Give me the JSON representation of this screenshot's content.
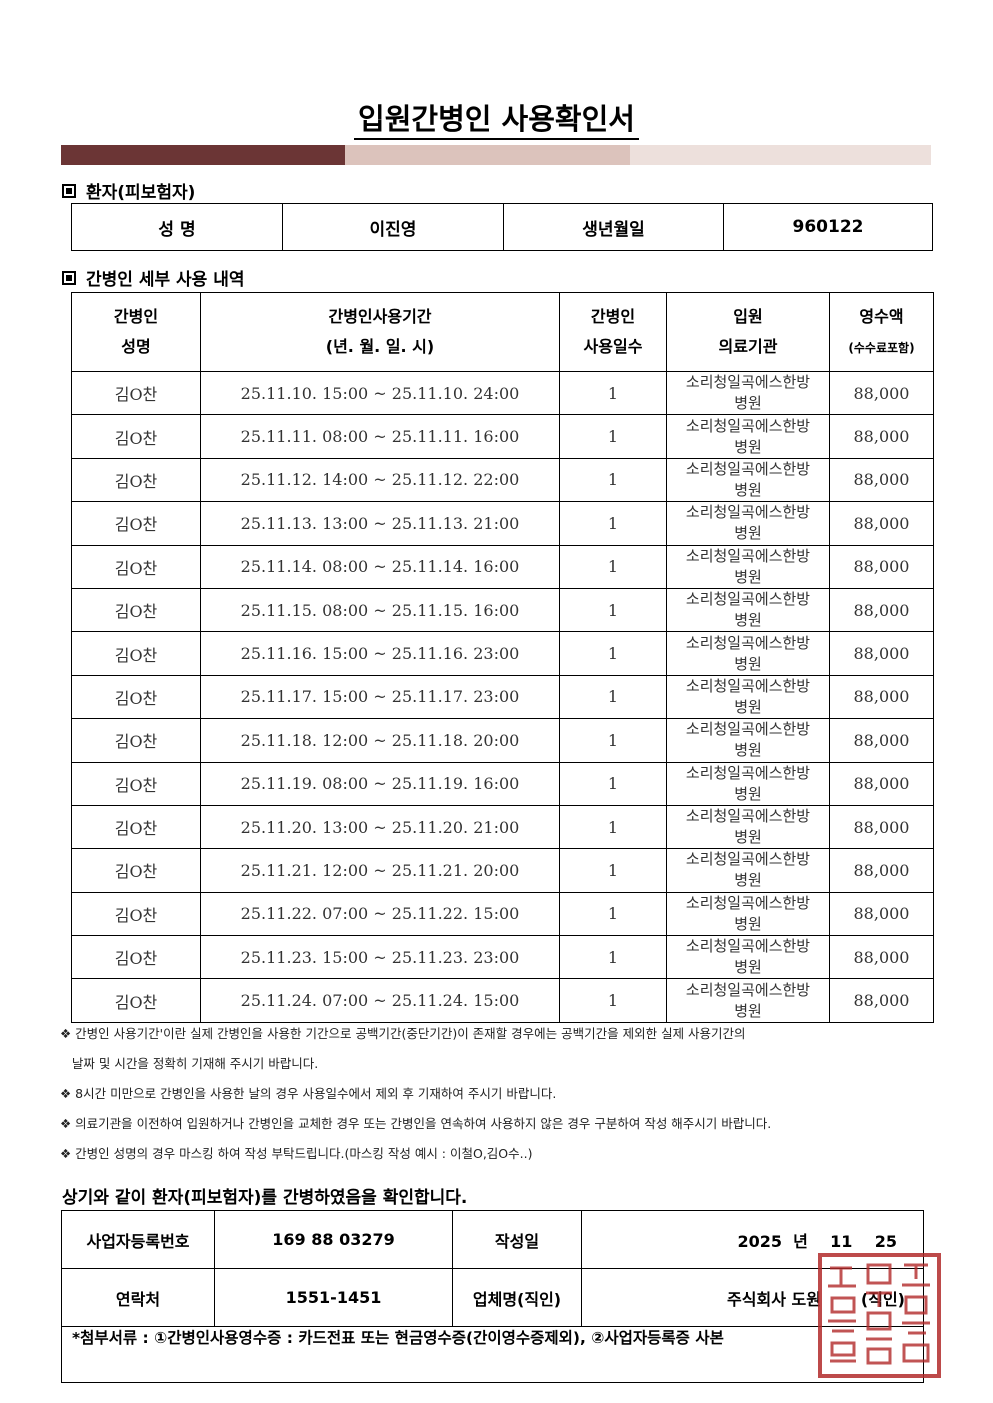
{
  "title": "입원간병인 사용확인서",
  "colors": {
    "bar_dark": "#6b3535",
    "bar_mid": "#dcc3bc",
    "bar_light": "#ede0dc",
    "seal": "#b22a2a"
  },
  "patient": {
    "section": "환자(피보험자)",
    "name_label": "성  명",
    "name": "이진영",
    "birth_label": "생년월일",
    "birth": "960122"
  },
  "caregiver": {
    "section": "간병인 세부 사용 내역",
    "headers": {
      "name": [
        "간병인",
        "성명"
      ],
      "period": [
        "간병인사용기간",
        "(년. 월. 일. 시)"
      ],
      "days": [
        "간병인",
        "사용일수"
      ],
      "hospital": [
        "입원",
        "의료기관"
      ],
      "amount": [
        "영수액",
        "(수수료포함)"
      ]
    },
    "rows": [
      {
        "name": "김O찬",
        "period": "25.11.10. 15:00 ~ 25.11.10. 24:00",
        "days": "1",
        "hospital": [
          "소리청일곡에스한방",
          "병원"
        ],
        "amount": "88,000"
      },
      {
        "name": "김O찬",
        "period": "25.11.11. 08:00 ~ 25.11.11. 16:00",
        "days": "1",
        "hospital": [
          "소리청일곡에스한방",
          "병원"
        ],
        "amount": "88,000"
      },
      {
        "name": "김O찬",
        "period": "25.11.12. 14:00 ~ 25.11.12. 22:00",
        "days": "1",
        "hospital": [
          "소리청일곡에스한방",
          "병원"
        ],
        "amount": "88,000"
      },
      {
        "name": "김O찬",
        "period": "25.11.13. 13:00 ~ 25.11.13. 21:00",
        "days": "1",
        "hospital": [
          "소리청일곡에스한방",
          "병원"
        ],
        "amount": "88,000"
      },
      {
        "name": "김O찬",
        "period": "25.11.14. 08:00 ~ 25.11.14. 16:00",
        "days": "1",
        "hospital": [
          "소리청일곡에스한방",
          "병원"
        ],
        "amount": "88,000"
      },
      {
        "name": "김O찬",
        "period": "25.11.15. 08:00 ~ 25.11.15. 16:00",
        "days": "1",
        "hospital": [
          "소리청일곡에스한방",
          "병원"
        ],
        "amount": "88,000"
      },
      {
        "name": "김O찬",
        "period": "25.11.16. 15:00 ~ 25.11.16. 23:00",
        "days": "1",
        "hospital": [
          "소리청일곡에스한방",
          "병원"
        ],
        "amount": "88,000"
      },
      {
        "name": "김O찬",
        "period": "25.11.17. 15:00 ~ 25.11.17. 23:00",
        "days": "1",
        "hospital": [
          "소리청일곡에스한방",
          "병원"
        ],
        "amount": "88,000"
      },
      {
        "name": "김O찬",
        "period": "25.11.18. 12:00 ~ 25.11.18. 20:00",
        "days": "1",
        "hospital": [
          "소리청일곡에스한방",
          "병원"
        ],
        "amount": "88,000"
      },
      {
        "name": "김O찬",
        "period": "25.11.19. 08:00 ~ 25.11.19. 16:00",
        "days": "1",
        "hospital": [
          "소리청일곡에스한방",
          "병원"
        ],
        "amount": "88,000"
      },
      {
        "name": "김O찬",
        "period": "25.11.20. 13:00 ~ 25.11.20. 21:00",
        "days": "1",
        "hospital": [
          "소리청일곡에스한방",
          "병원"
        ],
        "amount": "88,000"
      },
      {
        "name": "김O찬",
        "period": "25.11.21. 12:00 ~ 25.11.21. 20:00",
        "days": "1",
        "hospital": [
          "소리청일곡에스한방",
          "병원"
        ],
        "amount": "88,000"
      },
      {
        "name": "김O찬",
        "period": "25.11.22. 07:00 ~ 25.11.22. 15:00",
        "days": "1",
        "hospital": [
          "소리청일곡에스한방",
          "병원"
        ],
        "amount": "88,000"
      },
      {
        "name": "김O찬",
        "period": "25.11.23. 15:00 ~ 25.11.23. 23:00",
        "days": "1",
        "hospital": [
          "소리청일곡에스한방",
          "병원"
        ],
        "amount": "88,000"
      },
      {
        "name": "김O찬",
        "period": "25.11.24. 07:00 ~ 25.11.24. 15:00",
        "days": "1",
        "hospital": [
          "소리청일곡에스한방",
          "병원"
        ],
        "amount": "88,000"
      }
    ]
  },
  "notes": [
    "❖ 간병인 사용기간'이란 실제 간병인을 사용한 기간으로 공백기간(중단기간)이 존재할 경우에는 공백기간을 제외한 실제 사용기간의",
    "   날짜 및 시간을 정확히 기재해 주시기 바랍니다.",
    "❖ 8시간 미만으로 간병인을 사용한 날의 경우 사용일수에서 제외 후 기재하여 주시기 바랍니다.",
    "❖ 의료기관을 이전하여 입원하거나 간병인을 교체한 경우 또는 간병인을 연속하여 사용하지 않은 경우 구분하여 작성 해주시기 바랍니다.",
    "❖ 간병인 성명의 경우 마스킹 하여 작성 부탁드립니다.(마스킹 작성 예시 : 이철O,김O수..)"
  ],
  "confirm": "상기와 같이 환자(피보험자)를 간병하였음을 확인합니다.",
  "business": {
    "reg_label": "사업자등록번호",
    "reg": "169 88 03279",
    "date_label": "작성일",
    "date": "2025  년    11    25",
    "contact_label": "연락처",
    "contact": "1551-1451",
    "company_label": "업체명(직인)",
    "company": "주식회사 도원",
    "seal_suffix": "(직인)"
  },
  "attachments": "*첨부서류 : ①간병인사용영수증 : 카드전표 또는 현금영수증(간이영수증제외), ②사업자등록증 사본"
}
